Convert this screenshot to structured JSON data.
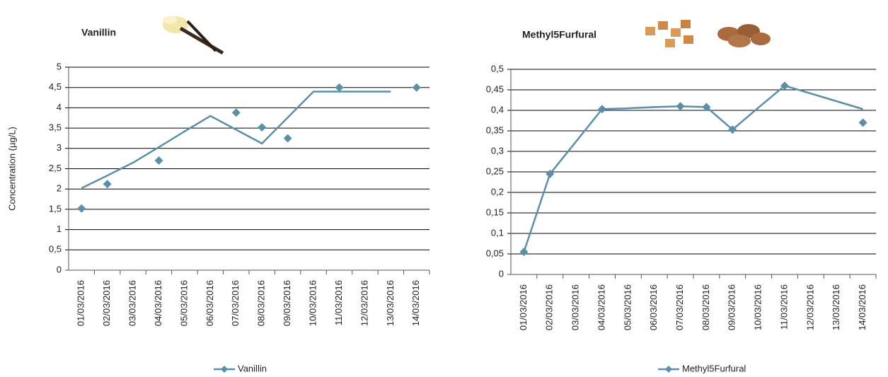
{
  "chart_data": [
    {
      "type": "line",
      "title": "Vanillin",
      "y_label": "Concentration (µg/L)",
      "categories": [
        "01/03/2016",
        "02/03/2016",
        "03/03/2016",
        "04/03/2016",
        "05/03/2016",
        "06/03/2016",
        "07/03/2016",
        "08/03/2016",
        "09/03/2016",
        "10/03/2016",
        "11/03/2016",
        "12/03/2016",
        "13/03/2016",
        "14/03/2016"
      ],
      "series": [
        {
          "name": "Vanillin",
          "color": "#5b8fa8",
          "values": [
            1.52,
            2.12,
            null,
            2.7,
            null,
            null,
            3.88,
            3.52,
            3.25,
            null,
            4.5,
            null,
            null,
            4.5
          ],
          "line_values": [
            2.02,
            2.33,
            2.65,
            3.03,
            3.42,
            3.8,
            3.46,
            3.12,
            3.76,
            4.4,
            4.4,
            4.4,
            4.4,
            null
          ]
        }
      ],
      "ylim": [
        0,
        5
      ],
      "yticks": [
        0,
        {
          "value": 0.5,
          "label": "0,5"
        },
        1,
        {
          "value": 1.5,
          "label": "1,5"
        },
        2,
        {
          "value": 2.5,
          "label": "2,5"
        },
        3,
        {
          "value": 3.5,
          "label": "3,5"
        },
        4,
        {
          "value": 4.5,
          "label": "4,5"
        },
        5
      ],
      "grid": true,
      "legend": "bottom"
    },
    {
      "type": "line",
      "title": "Methyl5Furfural",
      "categories": [
        "01/03/2016",
        "02/03/2016",
        "03/03/2016",
        "04/03/2016",
        "05/03/2016",
        "06/03/2016",
        "07/03/2016",
        "08/03/2016",
        "09/03/2016",
        "10/03/2016",
        "11/03/2016",
        "12/03/2016",
        "13/03/2016",
        "14/03/2016"
      ],
      "series": [
        {
          "name": "Methyl5Furfural",
          "color": "#5b8fa8",
          "values": [
            0.055,
            0.245,
            null,
            0.403,
            null,
            null,
            0.41,
            0.408,
            0.353,
            null,
            0.46,
            null,
            null,
            0.37
          ],
          "line_values": [
            0.055,
            0.245,
            0.324,
            0.403,
            0.405,
            0.408,
            0.41,
            0.408,
            0.353,
            0.407,
            0.46,
            0.441,
            0.422,
            0.403
          ]
        }
      ],
      "ylim": [
        0,
        0.5
      ],
      "yticks": [
        0,
        {
          "value": 0.05,
          "label": "0,05"
        },
        {
          "value": 0.1,
          "label": "0,1"
        },
        {
          "value": 0.15,
          "label": "0,15"
        },
        {
          "value": 0.2,
          "label": "0,2"
        },
        {
          "value": 0.25,
          "label": "0,25"
        },
        {
          "value": 0.3,
          "label": "0,3"
        },
        {
          "value": 0.35,
          "label": "0,35"
        },
        {
          "value": 0.4,
          "label": "0,4"
        },
        {
          "value": 0.45,
          "label": "0,45"
        },
        {
          "value": 0.5,
          "label": "0,5"
        }
      ],
      "grid": true,
      "legend": "bottom"
    }
  ]
}
